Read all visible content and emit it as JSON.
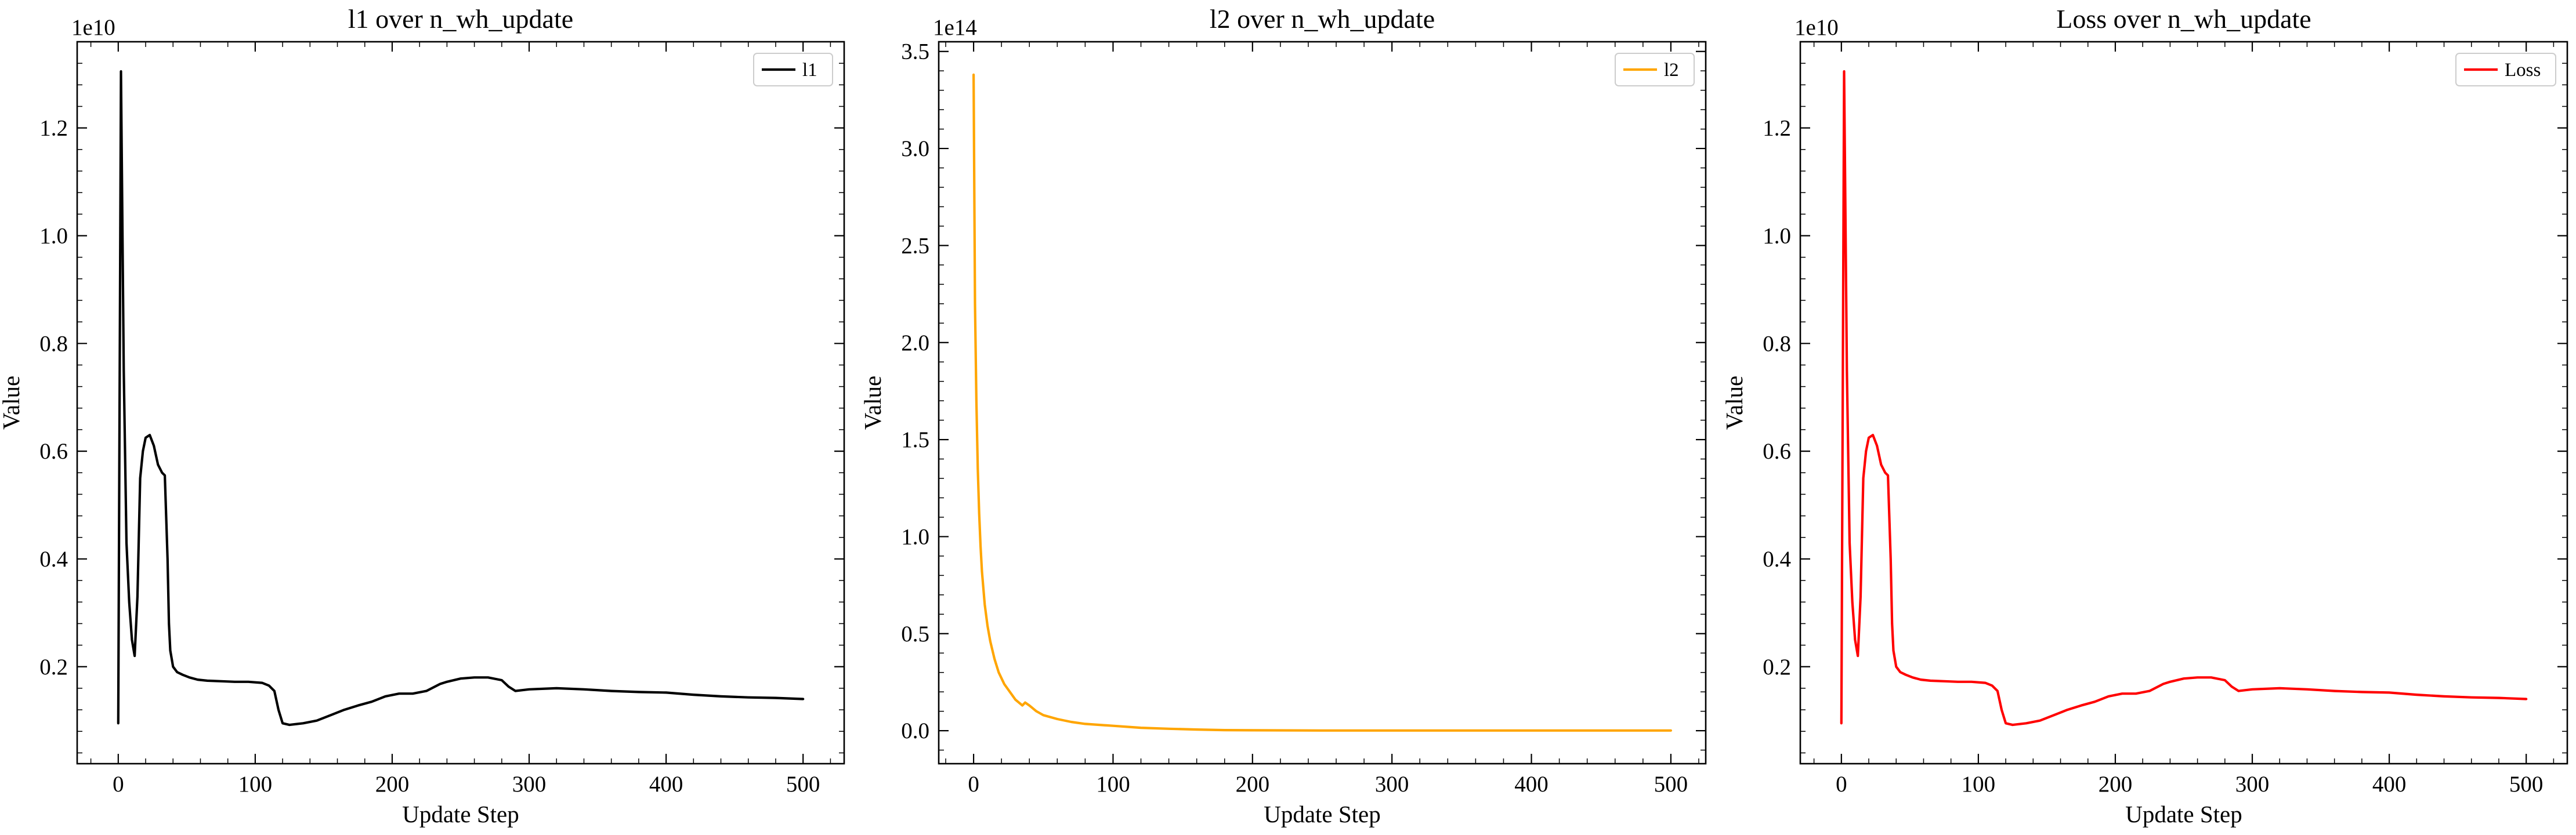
{
  "chart_data": [
    {
      "type": "line",
      "title": "l1 over n_wh_update",
      "xlabel": "Update Step",
      "ylabel": "Value",
      "offset_text": "1e10",
      "xlim": [
        -30,
        530
      ],
      "ylim": [
        0.02,
        1.36
      ],
      "x_ticks": [
        0,
        100,
        200,
        300,
        400,
        500
      ],
      "x_tick_labels": [
        "0",
        "100",
        "200",
        "300",
        "400",
        "500"
      ],
      "y_ticks": [
        0.2,
        0.4,
        0.6,
        0.8,
        1.0,
        1.2
      ],
      "y_tick_labels": [
        "0.2",
        "0.4",
        "0.6",
        "0.8",
        "1.0",
        "1.2"
      ],
      "legend_position": "top-right",
      "grid": false,
      "series": [
        {
          "name": "l1",
          "color": "#000000",
          "x": [
            0,
            2,
            4,
            6,
            8,
            10,
            12,
            14,
            16,
            18,
            20,
            23,
            26,
            29,
            32,
            34,
            36,
            37,
            38,
            40,
            43,
            47,
            52,
            58,
            65,
            75,
            85,
            95,
            105,
            110,
            114,
            117,
            120,
            125,
            135,
            145,
            155,
            165,
            175,
            185,
            195,
            205,
            215,
            225,
            235,
            240,
            250,
            260,
            270,
            280,
            285,
            290,
            300,
            320,
            340,
            360,
            380,
            400,
            420,
            440,
            460,
            480,
            500
          ],
          "y": [
            0.095,
            1.305,
            0.75,
            0.43,
            0.32,
            0.25,
            0.22,
            0.33,
            0.55,
            0.6,
            0.625,
            0.63,
            0.61,
            0.575,
            0.56,
            0.555,
            0.4,
            0.28,
            0.23,
            0.2,
            0.19,
            0.185,
            0.18,
            0.176,
            0.174,
            0.173,
            0.172,
            0.172,
            0.17,
            0.165,
            0.155,
            0.12,
            0.095,
            0.092,
            0.095,
            0.1,
            0.11,
            0.12,
            0.128,
            0.135,
            0.145,
            0.15,
            0.15,
            0.155,
            0.168,
            0.172,
            0.178,
            0.18,
            0.18,
            0.175,
            0.163,
            0.155,
            0.158,
            0.16,
            0.158,
            0.155,
            0.153,
            0.152,
            0.148,
            0.145,
            0.143,
            0.142,
            0.14
          ]
        }
      ]
    },
    {
      "type": "line",
      "title": "l2 over n_wh_update",
      "xlabel": "Update Step",
      "ylabel": "Value",
      "offset_text": "1e14",
      "xlim": [
        -25,
        525
      ],
      "ylim": [
        -0.17,
        3.55
      ],
      "x_ticks": [
        0,
        100,
        200,
        300,
        400,
        500
      ],
      "x_tick_labels": [
        "0",
        "100",
        "200",
        "300",
        "400",
        "500"
      ],
      "y_ticks": [
        0.0,
        0.5,
        1.0,
        1.5,
        2.0,
        2.5,
        3.0,
        3.5
      ],
      "y_tick_labels": [
        "0.0",
        "0.5",
        "1.0",
        "1.5",
        "2.0",
        "2.5",
        "3.0",
        "3.5"
      ],
      "legend_position": "top-right",
      "grid": false,
      "series": [
        {
          "name": "l2",
          "color": "#ffa500",
          "x": [
            0,
            1,
            2,
            3,
            4,
            5,
            6,
            8,
            10,
            12,
            15,
            18,
            22,
            26,
            30,
            35,
            37,
            40,
            45,
            50,
            60,
            70,
            80,
            100,
            120,
            140,
            160,
            180,
            200,
            250,
            300,
            350,
            400,
            450,
            500
          ],
          "y": [
            3.38,
            2.2,
            1.7,
            1.35,
            1.12,
            0.95,
            0.82,
            0.65,
            0.54,
            0.46,
            0.37,
            0.3,
            0.24,
            0.2,
            0.16,
            0.13,
            0.145,
            0.13,
            0.1,
            0.08,
            0.06,
            0.045,
            0.035,
            0.025,
            0.015,
            0.01,
            0.006,
            0.003,
            0.002,
            0.001,
            0.001,
            0.001,
            0.001,
            0.001,
            0.001
          ]
        }
      ]
    },
    {
      "type": "line",
      "title": "Loss over n_wh_update",
      "xlabel": "Update Step",
      "ylabel": "Value",
      "offset_text": "1e10",
      "xlim": [
        -30,
        530
      ],
      "ylim": [
        0.02,
        1.36
      ],
      "x_ticks": [
        0,
        100,
        200,
        300,
        400,
        500
      ],
      "x_tick_labels": [
        "0",
        "100",
        "200",
        "300",
        "400",
        "500"
      ],
      "y_ticks": [
        0.2,
        0.4,
        0.6,
        0.8,
        1.0,
        1.2
      ],
      "y_tick_labels": [
        "0.2",
        "0.4",
        "0.6",
        "0.8",
        "1.0",
        "1.2"
      ],
      "legend_position": "top-right",
      "grid": false,
      "series": [
        {
          "name": "Loss",
          "color": "#ff0000",
          "x": [
            0,
            2,
            4,
            6,
            8,
            10,
            12,
            14,
            16,
            18,
            20,
            23,
            26,
            29,
            32,
            34,
            36,
            37,
            38,
            40,
            43,
            47,
            52,
            58,
            65,
            75,
            85,
            95,
            105,
            110,
            114,
            117,
            120,
            125,
            135,
            145,
            155,
            165,
            175,
            185,
            195,
            205,
            215,
            225,
            235,
            240,
            250,
            260,
            270,
            280,
            285,
            290,
            300,
            320,
            340,
            360,
            380,
            400,
            420,
            440,
            460,
            480,
            500
          ],
          "y": [
            0.095,
            1.305,
            0.75,
            0.43,
            0.32,
            0.25,
            0.22,
            0.33,
            0.55,
            0.6,
            0.625,
            0.63,
            0.61,
            0.575,
            0.56,
            0.555,
            0.4,
            0.28,
            0.23,
            0.2,
            0.19,
            0.185,
            0.18,
            0.176,
            0.174,
            0.173,
            0.172,
            0.172,
            0.17,
            0.165,
            0.155,
            0.12,
            0.095,
            0.092,
            0.095,
            0.1,
            0.11,
            0.12,
            0.128,
            0.135,
            0.145,
            0.15,
            0.15,
            0.155,
            0.168,
            0.172,
            0.178,
            0.18,
            0.18,
            0.175,
            0.163,
            0.155,
            0.158,
            0.16,
            0.158,
            0.155,
            0.153,
            0.152,
            0.148,
            0.145,
            0.143,
            0.142,
            0.14
          ]
        }
      ]
    }
  ]
}
